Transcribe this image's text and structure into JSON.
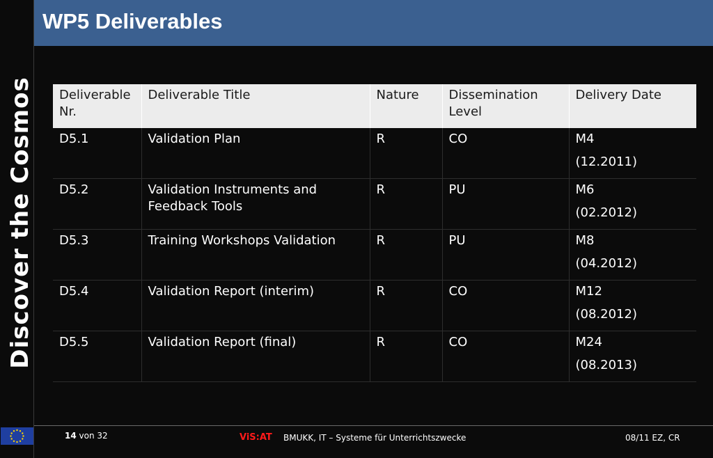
{
  "sidebar": {
    "title": "Discover the Cosmos"
  },
  "header": {
    "title": "WP5 Deliverables"
  },
  "table": {
    "columns": [
      "Deliverable Nr.",
      "Deliverable Title",
      "Nature",
      "Dissemination Level",
      "Delivery Date"
    ],
    "rows": [
      {
        "nr": "D5.1",
        "title": "Validation Plan",
        "nature": "R",
        "level": "CO",
        "month": "M4",
        "date": "(12.2011)"
      },
      {
        "nr": "D5.2",
        "title": "Validation Instruments and Feedback Tools",
        "nature": "R",
        "level": "PU",
        "month": "M6",
        "date": "(02.2012)"
      },
      {
        "nr": "D5.3",
        "title": "Training Workshops Validation",
        "nature": "R",
        "level": "PU",
        "month": "M8",
        "date": "(04.2012)"
      },
      {
        "nr": "D5.4",
        "title": "Validation Report (interim)",
        "nature": "R",
        "level": "CO",
        "month": "M12",
        "date": "(08.2012)"
      },
      {
        "nr": "D5.5",
        "title": "Validation Report (final)",
        "nature": "R",
        "level": "CO",
        "month": "M24",
        "date": "(08.2013)"
      }
    ]
  },
  "footer": {
    "page_current": "14",
    "page_sep": " von ",
    "page_total": "32",
    "brand": "ViS:AT",
    "org": "BMUKK, IT – Systeme für Unterrichtszwecke",
    "date": "08/11 EZ, CR"
  },
  "colors": {
    "header_bg": "#3b6090",
    "brand": "#ff1a1a",
    "flag_bg": "#1f3fa0",
    "flag_stars": "#ffd500"
  },
  "icons": {
    "flag": "eu-flag-icon"
  }
}
